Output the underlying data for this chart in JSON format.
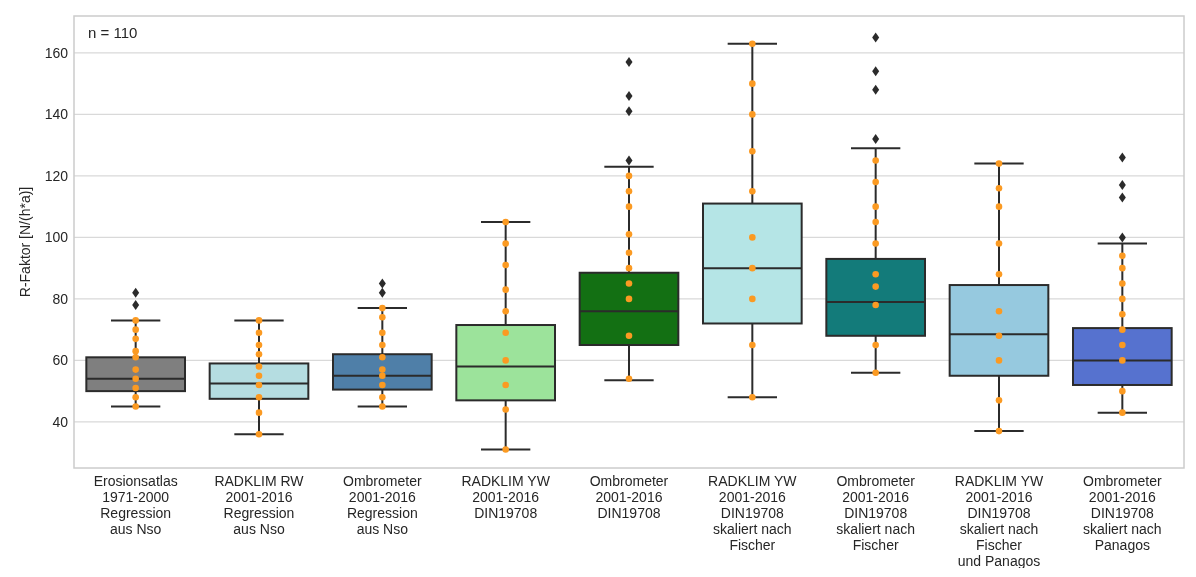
{
  "chart_data": {
    "type": "box",
    "ylabel": "R-Faktor [N/(h*a)]",
    "annotations": [
      "n = 110"
    ],
    "categories": [
      "Erosionsatlas\n1971-2000\nRegression\naus Nso",
      "RADKLIM RW\n2001-2016\nRegression\naus Nso",
      "Ombrometer\n2001-2016\nRegression\naus Nso",
      "RADKLIM YW\n2001-2016\nDIN19708",
      "Ombrometer\n2001-2016\nDIN19708",
      "RADKLIM YW\n2001-2016\nDIN19708\nskaliert nach\nFischer",
      "Ombrometer\n2001-2016\nDIN19708\nskaliert nach\nFischer",
      "RADKLIM YW\n2001-2016\nDIN19708\nskaliert nach\nFischer\nund Panagos",
      "Ombrometer\n2001-2016\nDIN19708\nskaliert nach\nPanagos"
    ],
    "colors": [
      "#7f7f7f",
      "#b5dde1",
      "#4f7fa8",
      "#9ce39b",
      "#137013",
      "#b5e5e6",
      "#137b7a",
      "#96c9df",
      "#5672cf"
    ],
    "boxes": [
      {
        "low": 45,
        "q1": 50,
        "median": 54,
        "q3": 61,
        "high": 73,
        "outliers": [
          82,
          78
        ]
      },
      {
        "low": 36,
        "q1": 47.5,
        "median": 52.5,
        "q3": 59,
        "high": 73
      },
      {
        "low": 45,
        "q1": 50.5,
        "median": 55,
        "q3": 62,
        "high": 77,
        "outliers": [
          85,
          82
        ]
      },
      {
        "low": 31,
        "q1": 47,
        "median": 58,
        "q3": 71.5,
        "high": 105
      },
      {
        "low": 53.5,
        "q1": 65,
        "median": 76,
        "q3": 88.5,
        "high": 123,
        "outliers": [
          157,
          146,
          141,
          125
        ]
      },
      {
        "low": 48,
        "q1": 72,
        "median": 90,
        "q3": 111,
        "high": 163
      },
      {
        "low": 56,
        "q1": 68,
        "median": 79,
        "q3": 93,
        "high": 129,
        "outliers": [
          165,
          154,
          148,
          132
        ]
      },
      {
        "low": 37,
        "q1": 55,
        "median": 68.5,
        "q3": 84.5,
        "high": 124
      },
      {
        "low": 43,
        "q1": 52,
        "median": 60,
        "q3": 70.5,
        "high": 98,
        "outliers": [
          126,
          117,
          113,
          100
        ]
      }
    ],
    "series": [
      {
        "type": "scatter",
        "color": "#fb9a22",
        "x": [
          "Erosionsatlas\n1971-2000\nRegression\naus Nso",
          "Erosionsatlas\n1971-2000\nRegression\naus Nso",
          "Erosionsatlas\n1971-2000\nRegression\naus Nso",
          "Erosionsatlas\n1971-2000\nRegression\naus Nso",
          "Erosionsatlas\n1971-2000\nRegression\naus Nso",
          "Erosionsatlas\n1971-2000\nRegression\naus Nso",
          "Erosionsatlas\n1971-2000\nRegression\naus Nso",
          "Erosionsatlas\n1971-2000\nRegression\naus Nso",
          "Erosionsatlas\n1971-2000\nRegression\naus Nso",
          "Erosionsatlas\n1971-2000\nRegression\naus Nso",
          "RADKLIM RW\n2001-2016\nRegression\naus Nso",
          "RADKLIM RW\n2001-2016\nRegression\naus Nso",
          "RADKLIM RW\n2001-2016\nRegression\naus Nso",
          "RADKLIM RW\n2001-2016\nRegression\naus Nso",
          "RADKLIM RW\n2001-2016\nRegression\naus Nso",
          "RADKLIM RW\n2001-2016\nRegression\naus Nso",
          "RADKLIM RW\n2001-2016\nRegression\naus Nso",
          "RADKLIM RW\n2001-2016\nRegression\naus Nso",
          "RADKLIM RW\n2001-2016\nRegression\naus Nso",
          "RADKLIM RW\n2001-2016\nRegression\naus Nso",
          "Ombrometer\n2001-2016\nRegression\naus Nso",
          "Ombrometer\n2001-2016\nRegression\naus Nso",
          "Ombrometer\n2001-2016\nRegression\naus Nso",
          "Ombrometer\n2001-2016\nRegression\naus Nso",
          "Ombrometer\n2001-2016\nRegression\naus Nso",
          "Ombrometer\n2001-2016\nRegression\naus Nso",
          "Ombrometer\n2001-2016\nRegression\naus Nso",
          "Ombrometer\n2001-2016\nRegression\naus Nso",
          "Ombrometer\n2001-2016\nRegression\naus Nso",
          "Ombrometer\n2001-2016\nRegression\naus Nso",
          "RADKLIM YW\n2001-2016\nDIN19708",
          "RADKLIM YW\n2001-2016\nDIN19708",
          "RADKLIM YW\n2001-2016\nDIN19708",
          "RADKLIM YW\n2001-2016\nDIN19708",
          "RADKLIM YW\n2001-2016\nDIN19708",
          "RADKLIM YW\n2001-2016\nDIN19708",
          "RADKLIM YW\n2001-2016\nDIN19708",
          "RADKLIM YW\n2001-2016\nDIN19708",
          "RADKLIM YW\n2001-2016\nDIN19708",
          "RADKLIM YW\n2001-2016\nDIN19708",
          "Ombrometer\n2001-2016\nDIN19708",
          "Ombrometer\n2001-2016\nDIN19708",
          "Ombrometer\n2001-2016\nDIN19708",
          "Ombrometer\n2001-2016\nDIN19708",
          "Ombrometer\n2001-2016\nDIN19708",
          "Ombrometer\n2001-2016\nDIN19708",
          "Ombrometer\n2001-2016\nDIN19708",
          "Ombrometer\n2001-2016\nDIN19708",
          "Ombrometer\n2001-2016\nDIN19708",
          "Ombrometer\n2001-2016\nDIN19708",
          "RADKLIM YW\n2001-2016\nDIN19708\nskaliert nach\nFischer",
          "RADKLIM YW\n2001-2016\nDIN19708\nskaliert nach\nFischer",
          "RADKLIM YW\n2001-2016\nDIN19708\nskaliert nach\nFischer",
          "RADKLIM YW\n2001-2016\nDIN19708\nskaliert nach\nFischer",
          "RADKLIM YW\n2001-2016\nDIN19708\nskaliert nach\nFischer",
          "RADKLIM YW\n2001-2016\nDIN19708\nskaliert nach\nFischer",
          "RADKLIM YW\n2001-2016\nDIN19708\nskaliert nach\nFischer",
          "RADKLIM YW\n2001-2016\nDIN19708\nskaliert nach\nFischer",
          "RADKLIM YW\n2001-2016\nDIN19708\nskaliert nach\nFischer",
          "RADKLIM YW\n2001-2016\nDIN19708\nskaliert nach\nFischer",
          "Ombrometer\n2001-2016\nDIN19708\nskaliert nach\nFischer",
          "Ombrometer\n2001-2016\nDIN19708\nskaliert nach\nFischer",
          "Ombrometer\n2001-2016\nDIN19708\nskaliert nach\nFischer",
          "Ombrometer\n2001-2016\nDIN19708\nskaliert nach\nFischer",
          "Ombrometer\n2001-2016\nDIN19708\nskaliert nach\nFischer",
          "Ombrometer\n2001-2016\nDIN19708\nskaliert nach\nFischer",
          "Ombrometer\n2001-2016\nDIN19708\nskaliert nach\nFischer",
          "Ombrometer\n2001-2016\nDIN19708\nskaliert nach\nFischer",
          "Ombrometer\n2001-2016\nDIN19708\nskaliert nach\nFischer",
          "Ombrometer\n2001-2016\nDIN19708\nskaliert nach\nFischer",
          "RADKLIM YW\n2001-2016\nDIN19708\nskaliert nach\nFischer\nund Panagos",
          "RADKLIM YW\n2001-2016\nDIN19708\nskaliert nach\nFischer\nund Panagos",
          "RADKLIM YW\n2001-2016\nDIN19708\nskaliert nach\nFischer\nund Panagos",
          "RADKLIM YW\n2001-2016\nDIN19708\nskaliert nach\nFischer\nund Panagos",
          "RADKLIM YW\n2001-2016\nDIN19708\nskaliert nach\nFischer\nund Panagos",
          "RADKLIM YW\n2001-2016\nDIN19708\nskaliert nach\nFischer\nund Panagos",
          "RADKLIM YW\n2001-2016\nDIN19708\nskaliert nach\nFischer\nund Panagos",
          "RADKLIM YW\n2001-2016\nDIN19708\nskaliert nach\nFischer\nund Panagos",
          "RADKLIM YW\n2001-2016\nDIN19708\nskaliert nach\nFischer\nund Panagos",
          "RADKLIM YW\n2001-2016\nDIN19708\nskaliert nach\nFischer\nund Panagos",
          "Ombrometer\n2001-2016\nDIN19708\nskaliert nach\nPanagos",
          "Ombrometer\n2001-2016\nDIN19708\nskaliert nach\nPanagos",
          "Ombrometer\n2001-2016\nDIN19708\nskaliert nach\nPanagos",
          "Ombrometer\n2001-2016\nDIN19708\nskaliert nach\nPanagos",
          "Ombrometer\n2001-2016\nDIN19708\nskaliert nach\nPanagos",
          "Ombrometer\n2001-2016\nDIN19708\nskaliert nach\nPanagos",
          "Ombrometer\n2001-2016\nDIN19708\nskaliert nach\nPanagos",
          "Ombrometer\n2001-2016\nDIN19708\nskaliert nach\nPanagos",
          "Ombrometer\n2001-2016\nDIN19708\nskaliert nach\nPanagos",
          "Ombrometer\n2001-2016\nDIN19708\nskaliert nach\nPanagos"
        ],
        "values": [
          63,
          73,
          70,
          67,
          61,
          57,
          54,
          51,
          48,
          45,
          73,
          69,
          65,
          62,
          58,
          55,
          52,
          48,
          43,
          36,
          77,
          74,
          69,
          65,
          61,
          57,
          55,
          52,
          48,
          45,
          105,
          98,
          91,
          83,
          76,
          69,
          60,
          52,
          44,
          31,
          120,
          110,
          95,
          85,
          115,
          101,
          90,
          80,
          68,
          54,
          163,
          150,
          140,
          128,
          115,
          100,
          90,
          80,
          65,
          48,
          125,
          110,
          98,
          84,
          118,
          105,
          88,
          78,
          65,
          56,
          124,
          116,
          110,
          98,
          88,
          76,
          68,
          60,
          47,
          37,
          94,
          85,
          75,
          65,
          90,
          80,
          70,
          60,
          50,
          43
        ]
      }
    ],
    "ylim": [
      25,
      172
    ],
    "yticks": [
      40,
      60,
      80,
      100,
      120,
      140,
      160
    ],
    "grid": "y",
    "marker": "circle"
  }
}
